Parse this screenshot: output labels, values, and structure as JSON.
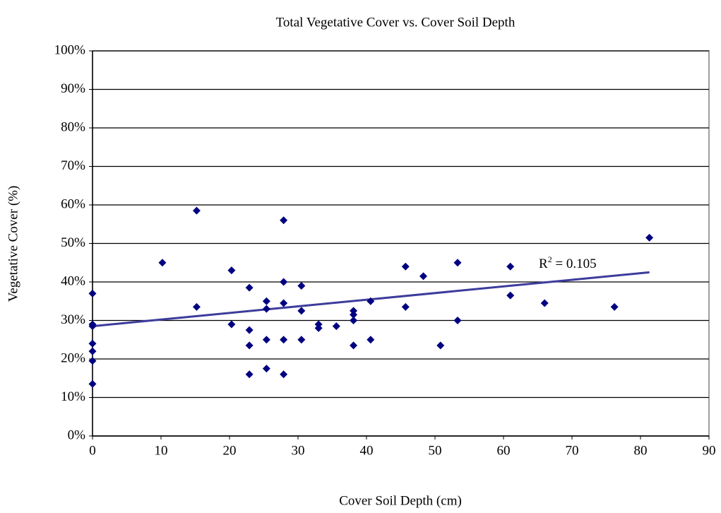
{
  "chart_data": {
    "type": "scatter",
    "title": "Total Vegetative Cover vs. Cover Soil Depth",
    "x_label": "Cover Soil Depth (cm)",
    "y_label": "Vegetative Cover (%)",
    "series": [
      {
        "name": "Total Vegetative Cover",
        "color": "#000080",
        "x": [
          0,
          0,
          0,
          0,
          0,
          0,
          0,
          10.2,
          15.2,
          15.2,
          20.3,
          20.3,
          22.9,
          22.9,
          22.9,
          22.9,
          25.4,
          25.4,
          25.4,
          25.4,
          27.9,
          27.9,
          27.9,
          27.9,
          27.9,
          30.5,
          30.5,
          30.5,
          33,
          33,
          35.6,
          38.1,
          38.1,
          38.1,
          38.1,
          40.6,
          40.6,
          45.7,
          45.7,
          48.3,
          50.8,
          53.3,
          53.3,
          61,
          61,
          66,
          76.2,
          81.3
        ],
        "values": [
          37,
          29,
          28.5,
          24,
          22,
          19.5,
          13.5,
          45,
          58.5,
          33.5,
          43,
          29,
          38.5,
          27.5,
          23.5,
          16,
          35,
          33,
          25,
          17.5,
          56,
          40,
          34.5,
          25,
          16,
          39,
          32.5,
          25,
          29,
          28,
          28.5,
          32.5,
          31.5,
          30,
          23.5,
          35,
          25,
          44,
          33.5,
          41.5,
          23.5,
          45,
          30,
          44,
          36.5,
          34.5,
          33.5,
          51.5
        ]
      }
    ],
    "trendline": {
      "color": "#3c3c9c",
      "x": [
        0,
        81.3
      ],
      "values": [
        28.5,
        42.5
      ]
    },
    "annotation": {
      "base": "R",
      "sup": "2",
      "text": " = 0.105"
    },
    "xlim": [
      0,
      90
    ],
    "xticks": [
      0,
      10,
      20,
      30,
      40,
      50,
      60,
      70,
      80,
      90
    ],
    "ylim": [
      0,
      100
    ],
    "yticks": [
      {
        "value": 0,
        "label": "0%"
      },
      {
        "value": 10,
        "label": "10%"
      },
      {
        "value": 20,
        "label": "20%"
      },
      {
        "value": 30,
        "label": "30%"
      },
      {
        "value": 40,
        "label": "40%"
      },
      {
        "value": 50,
        "label": "50%"
      },
      {
        "value": 60,
        "label": "60%"
      },
      {
        "value": 70,
        "label": "70%"
      },
      {
        "value": 80,
        "label": "80%"
      },
      {
        "value": 90,
        "label": "90%"
      },
      {
        "value": 100,
        "label": "100%"
      }
    ],
    "grid": true
  }
}
